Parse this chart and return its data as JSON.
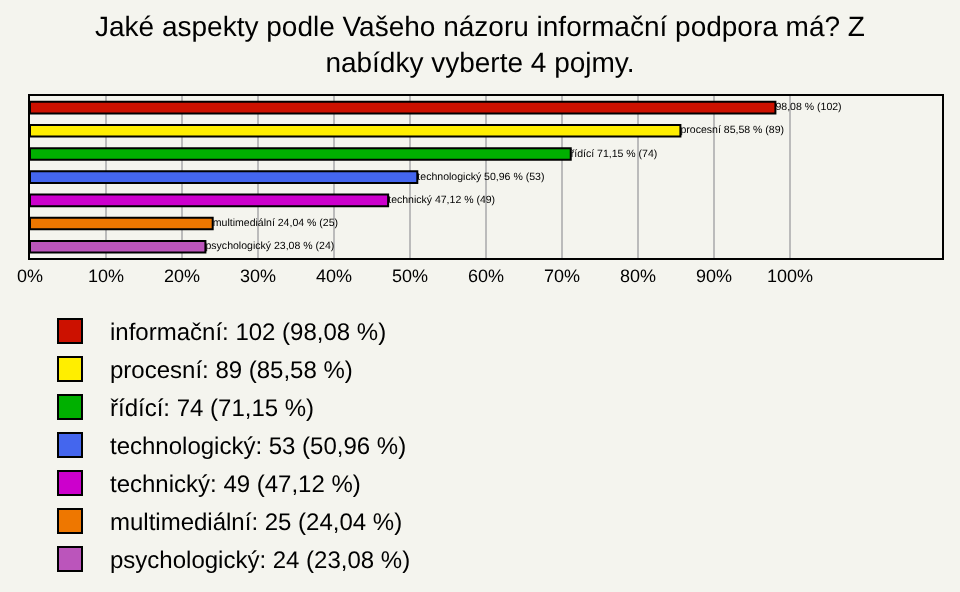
{
  "chart_data": {
    "type": "bar",
    "orientation": "horizontal",
    "title": "Jaké aspekty podle Vašeho názoru informační podpora má? Z nabídky vyberte 4 pojmy.",
    "categories": [
      null,
      null,
      null,
      null,
      null,
      null,
      null
    ],
    "series": [
      {
        "name": "informační: 102 (98,08 %)",
        "color": "#cc1100",
        "values": [
          98.08,
          null,
          null,
          null,
          null,
          null,
          null
        ],
        "value_labels": [
          "98,08 % (102)",
          null,
          null,
          null,
          null,
          null,
          null
        ]
      },
      {
        "name": "procesní: 89 (85,58 %)",
        "color": "#ffee00",
        "values": [
          null,
          85.58,
          null,
          null,
          null,
          null,
          null
        ],
        "value_labels": [
          null,
          "procesní 85,58 % (89)",
          null,
          null,
          null,
          null,
          null
        ]
      },
      {
        "name": "řídící: 74 (71,15 %)",
        "color": "#00b000",
        "values": [
          null,
          null,
          71.15,
          null,
          null,
          null,
          null
        ],
        "value_labels": [
          null,
          null,
          "řídící 71,15 % (74)",
          null,
          null,
          null,
          null
        ]
      },
      {
        "name": "technologický: 53 (50,96 %)",
        "color": "#4466ee",
        "values": [
          null,
          null,
          null,
          50.96,
          null,
          null,
          null
        ],
        "value_labels": [
          null,
          null,
          null,
          "technologický 50,96 % (53)",
          null,
          null,
          null
        ]
      },
      {
        "name": "technický: 49 (47,12 %)",
        "color": "#cc00cc",
        "values": [
          null,
          null,
          null,
          null,
          47.12,
          null,
          null
        ],
        "value_labels": [
          null,
          null,
          null,
          null,
          "technický 47,12 % (49)",
          null,
          null
        ]
      },
      {
        "name": "multimediální: 25 (24,04 %)",
        "color": "#ee7700",
        "values": [
          null,
          null,
          null,
          null,
          null,
          24.04,
          null
        ],
        "value_labels": [
          null,
          null,
          null,
          null,
          null,
          "multimediální 24,04 % (25)",
          null
        ]
      },
      {
        "name": "psychologický: 24 (23,08 %)",
        "color": "#bb55bb",
        "values": [
          null,
          null,
          null,
          null,
          null,
          null,
          23.08
        ],
        "value_labels": [
          null,
          null,
          null,
          null,
          null,
          null,
          "psychologický 23,08 % (24)"
        ]
      }
    ],
    "xlim": [
      0,
      120
    ],
    "xticks": [
      {
        "value": 0,
        "label": "0%"
      },
      {
        "value": 10,
        "label": "10%"
      },
      {
        "value": 20,
        "label": "20%"
      },
      {
        "value": 30,
        "label": "30%"
      },
      {
        "value": 40,
        "label": "40%"
      },
      {
        "value": 50,
        "label": "50%"
      },
      {
        "value": 60,
        "label": "60%"
      },
      {
        "value": 70,
        "label": "70%"
      },
      {
        "value": 80,
        "label": "80%"
      },
      {
        "value": 90,
        "label": "90%"
      },
      {
        "value": 100,
        "label": "100%"
      }
    ],
    "grid": "x",
    "legend": "bottom",
    "tick_labels": "x"
  }
}
